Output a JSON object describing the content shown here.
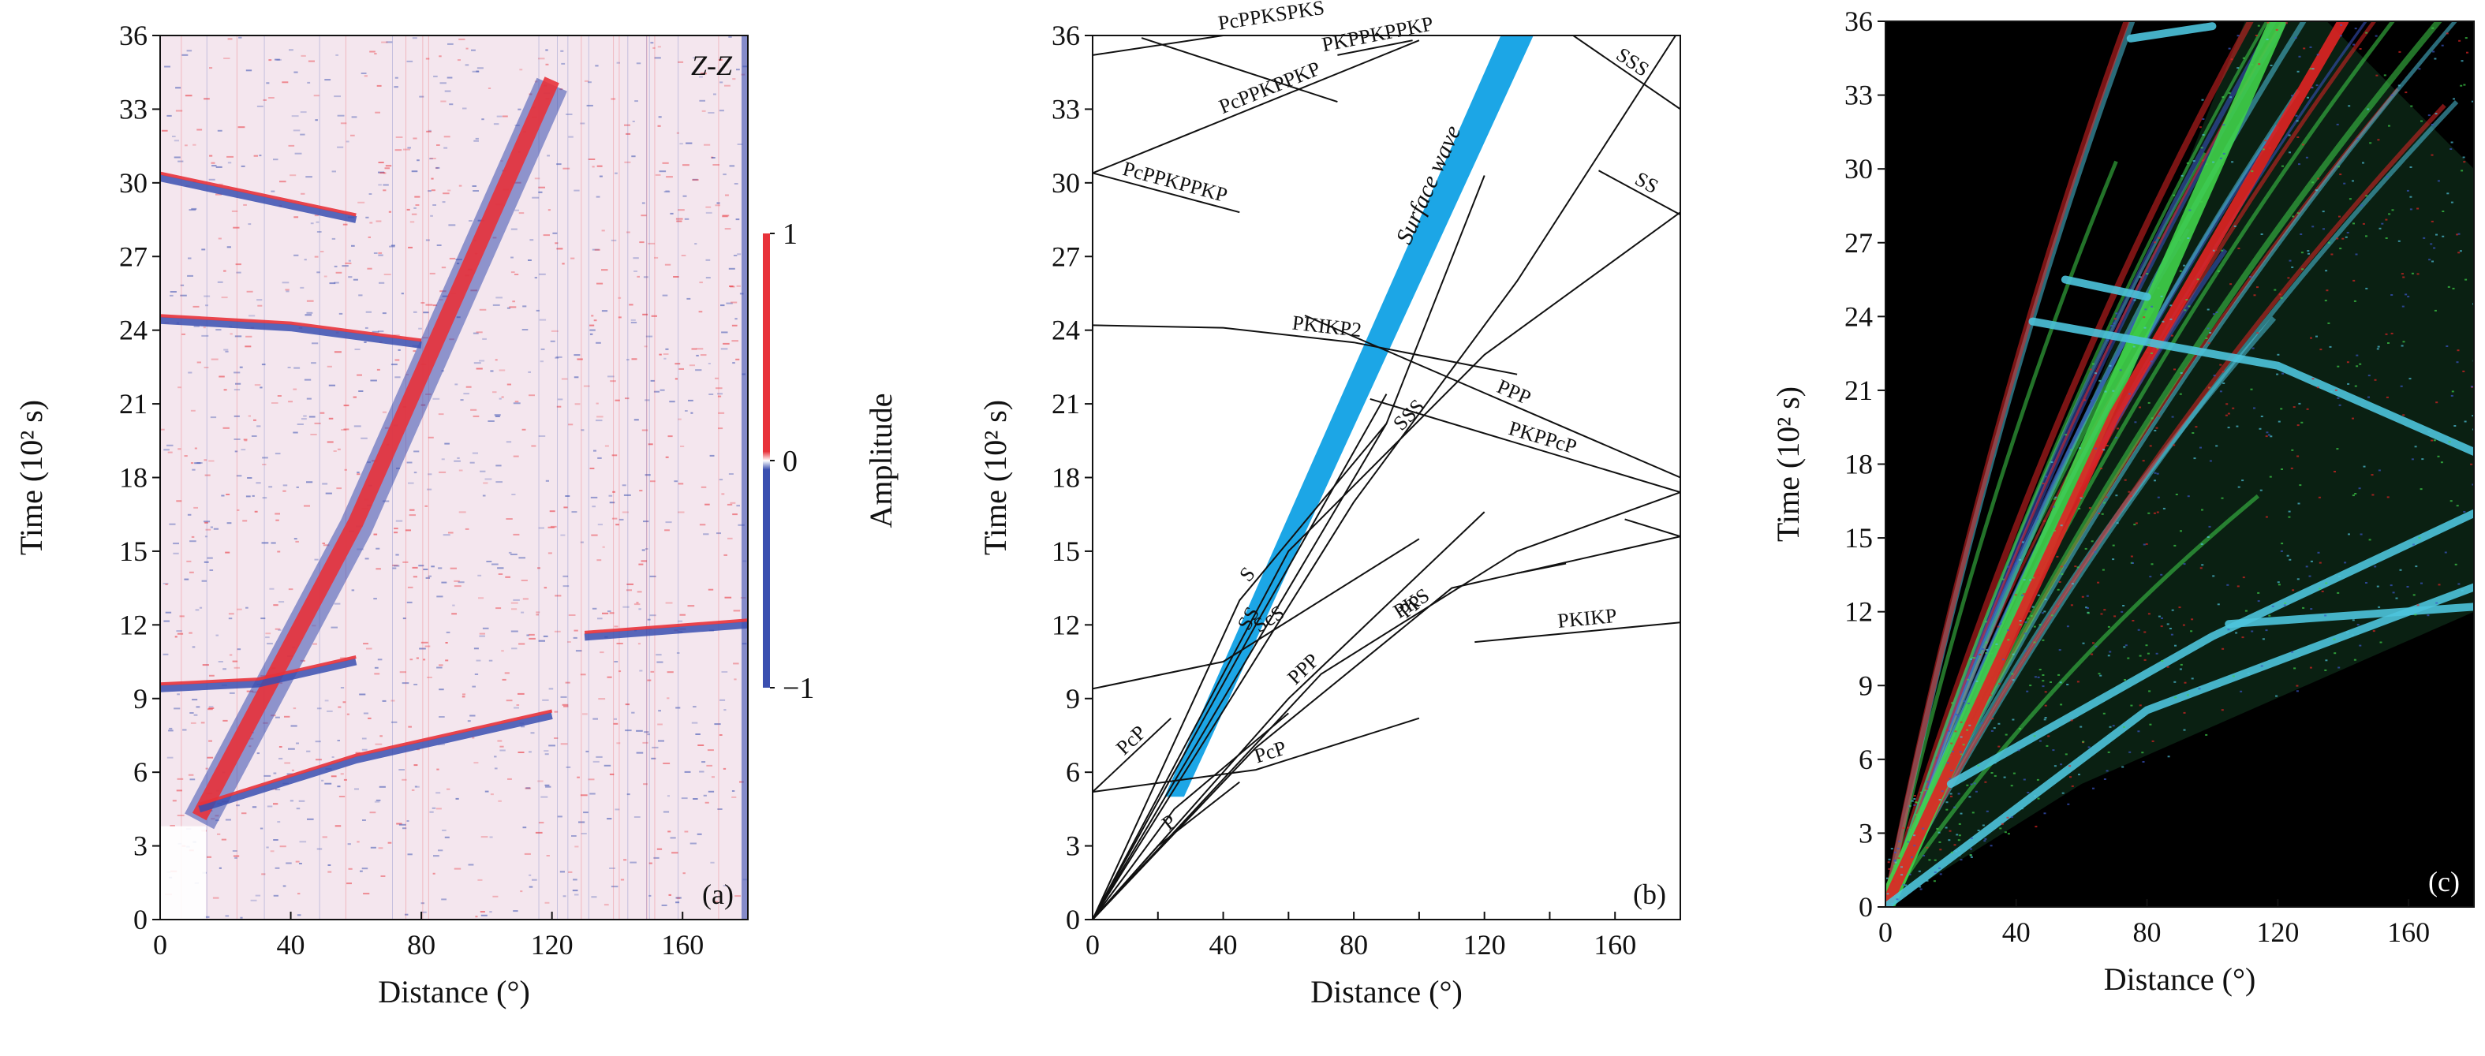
{
  "chart_data": [
    {
      "type": "heatmap",
      "panel_label": "(a)",
      "corner_label": "Z-Z",
      "xlabel": "Distance (°)",
      "ylabel": "Time (10² s)",
      "xlim": [
        0,
        180
      ],
      "ylim": [
        0,
        36
      ],
      "xticks": [
        0,
        40,
        80,
        120,
        160
      ],
      "yticks": [
        0,
        3,
        6,
        9,
        12,
        15,
        18,
        21,
        24,
        27,
        30,
        33,
        36
      ],
      "colorbar": {
        "title": "Amplitude",
        "ticks": [
          {
            "value": 1,
            "label": "1"
          },
          {
            "value": 0,
            "label": "0"
          },
          {
            "value": -1,
            "label": "−1"
          }
        ],
        "colors": {
          "positive": "#e8323a",
          "zero": "#ffffff",
          "negative": "#3a4fb0"
        }
      },
      "background_color": "#f4e6ee",
      "features": [
        {
          "name": "surface wave band",
          "points": [
            [
              12,
              4
            ],
            [
              60,
              16
            ],
            [
              90,
              25
            ],
            [
              120,
              34
            ]
          ]
        },
        {
          "name": "ScS",
          "points": [
            [
              0,
              9.4
            ],
            [
              30,
              9.6
            ],
            [
              60,
              10.5
            ]
          ]
        },
        {
          "name": "PKIKP2",
          "points": [
            [
              0,
              24.4
            ],
            [
              40,
              24.1
            ],
            [
              80,
              23.4
            ]
          ]
        },
        {
          "name": "PcPPKPPKP",
          "points": [
            [
              0,
              30.2
            ],
            [
              60,
              28.5
            ]
          ]
        },
        {
          "name": "P",
          "points": [
            [
              12,
              4.5
            ],
            [
              60,
              6.5
            ],
            [
              120,
              8.3
            ]
          ]
        },
        {
          "name": "PKIKP",
          "points": [
            [
              130,
              11.5
            ],
            [
              180,
              12.0
            ]
          ]
        }
      ]
    },
    {
      "type": "line",
      "panel_label": "(b)",
      "xlabel": "Distance (°)",
      "ylabel": "Time (10² s)",
      "xlim": [
        0,
        180
      ],
      "ylim": [
        0,
        36
      ],
      "xticks": [
        0,
        20,
        40,
        60,
        80,
        100,
        120,
        140,
        160
      ],
      "xtick_labels": [
        "0",
        "",
        "40",
        "",
        "80",
        "",
        "120",
        "",
        "160"
      ],
      "yticks": [
        0,
        3,
        6,
        9,
        12,
        15,
        18,
        21,
        24,
        27,
        30,
        33,
        36
      ],
      "surface_wave": {
        "label": "Surface wave",
        "color": "#1ca6e6",
        "left_edge": [
          [
            22,
            5
          ],
          [
            125,
            36
          ]
        ],
        "right_edge": [
          [
            28,
            5
          ],
          [
            135,
            36
          ]
        ]
      },
      "labels": [
        "PcPPKSPKS",
        "PKPPKPPKP",
        "PcPPKPPKP",
        "PcPPKPPKP",
        "SSS",
        "SS",
        "SSS",
        "PKIKP2",
        "PPP",
        "PKPPcP",
        "SS",
        "PKS",
        "PKIKP",
        "PPP",
        "PP",
        "PcP",
        "ScS",
        "S",
        "PcP",
        "P"
      ],
      "series": [
        {
          "label_index": 0,
          "points": [
            [
              0,
              35.2
            ],
            [
              50,
              36.2
            ],
            [
              100,
              37.2
            ]
          ]
        },
        {
          "label_index": 0,
          "points": [
            [
              15,
              35.9
            ],
            [
              75,
              33.3
            ]
          ]
        },
        {
          "label_index": 1,
          "points": [
            [
              75,
              35.2
            ],
            [
              98,
              35.8
            ]
          ]
        },
        {
          "label_index": 2,
          "points": [
            [
              0,
              30.4
            ],
            [
              100,
              35.8
            ]
          ]
        },
        {
          "label_index": 3,
          "points": [
            [
              0,
              30.4
            ],
            [
              45,
              28.8
            ]
          ]
        },
        {
          "label_index": 4,
          "points": [
            [
              145,
              36.2
            ],
            [
              180,
              33.0
            ]
          ]
        },
        {
          "label_index": 5,
          "points": [
            [
              155,
              30.5
            ],
            [
              180,
              28.7
            ]
          ]
        },
        {
          "label_index": 6,
          "points": [
            [
              0,
              0
            ],
            [
              60,
              15
            ],
            [
              120,
              23
            ],
            [
              180,
              28.8
            ]
          ]
        },
        {
          "label_index": 6,
          "points": [
            [
              0,
              0
            ],
            [
              80,
              17
            ],
            [
              130,
              26
            ],
            [
              180,
              36.3
            ]
          ]
        },
        {
          "label_index": 7,
          "points": [
            [
              0,
              24.2
            ],
            [
              40,
              24.1
            ],
            [
              80,
              23.5
            ],
            [
              130,
              22.2
            ]
          ]
        },
        {
          "label_index": 8,
          "points": [
            [
              65,
              24.6
            ],
            [
              180,
              18.0
            ]
          ]
        },
        {
          "label_index": 9,
          "points": [
            [
              85,
              21.2
            ],
            [
              180,
              17.4
            ]
          ]
        },
        {
          "label_index": 10,
          "points": [
            [
              0,
              0
            ],
            [
              50,
              12
            ],
            [
              90,
              21.4
            ]
          ]
        },
        {
          "label_index": 10,
          "points": [
            [
              0,
              0
            ],
            [
              90,
              20.2
            ],
            [
              120,
              30.3
            ]
          ]
        },
        {
          "label_index": 11,
          "points": [
            [
              0,
              0
            ],
            [
              70,
              10
            ],
            [
              130,
              15
            ],
            [
              180,
              17.4
            ]
          ]
        },
        {
          "label_index": 11,
          "points": [
            [
              130,
              14.1
            ],
            [
              145,
              14.5
            ]
          ]
        },
        {
          "label_index": 12,
          "points": [
            [
              117,
              11.3
            ],
            [
              180,
              12.1
            ]
          ]
        },
        {
          "label_index": 12,
          "points": [
            [
              163,
              16.3
            ],
            [
              180,
              15.6
            ]
          ]
        },
        {
          "label_index": 13,
          "points": [
            [
              0,
              0
            ],
            [
              60,
              9
            ],
            [
              120,
              16.6
            ]
          ]
        },
        {
          "label_index": 14,
          "points": [
            [
              0,
              0
            ],
            [
              50,
              7
            ],
            [
              110,
              13.5
            ],
            [
              180,
              15.6
            ]
          ]
        },
        {
          "label_index": 15,
          "points": [
            [
              0,
              5.2
            ],
            [
              50,
              6.1
            ],
            [
              100,
              8.2
            ]
          ]
        },
        {
          "label_index": 16,
          "points": [
            [
              0,
              9.4
            ],
            [
              40,
              10.5
            ],
            [
              100,
              15.5
            ]
          ]
        },
        {
          "label_index": 17,
          "points": [
            [
              0,
              0
            ],
            [
              45,
              13
            ],
            [
              90,
              20.2
            ]
          ]
        },
        {
          "label_index": 18,
          "points": [
            [
              0,
              5.2
            ],
            [
              24,
              8.2
            ]
          ]
        },
        {
          "label_index": 19,
          "points": [
            [
              0,
              0
            ],
            [
              20,
              3
            ],
            [
              45,
              5.6
            ]
          ]
        },
        {
          "label_index": 19,
          "points": [
            [
              0,
              0
            ],
            [
              25,
              4.5
            ],
            [
              60,
              8.4
            ]
          ]
        }
      ]
    },
    {
      "type": "heatmap",
      "panel_label": "(c)",
      "xlabel": "Distance (°)",
      "ylabel": "Time (10² s)",
      "xlim": [
        0,
        180
      ],
      "ylim": [
        0,
        36
      ],
      "xticks": [
        0,
        40,
        80,
        120,
        160
      ],
      "yticks": [
        0,
        3,
        6,
        9,
        12,
        15,
        18,
        21,
        24,
        27,
        30,
        33,
        36
      ],
      "background_color": "#000000",
      "colors": {
        "green": "#3fd14a",
        "red": "#e02424",
        "cyan": "#4dc3dc",
        "blue": "#3a55c8"
      },
      "features": [
        {
          "color": "green",
          "points": [
            [
              0,
              0
            ],
            [
              60,
              18
            ],
            [
              120,
              36
            ]
          ]
        },
        {
          "color": "red",
          "points": [
            [
              0,
              0
            ],
            [
              70,
              20
            ],
            [
              140,
              36
            ]
          ]
        },
        {
          "color": "cyan",
          "points": [
            [
              0,
              0
            ],
            [
              80,
              8
            ],
            [
              180,
              13
            ]
          ]
        },
        {
          "color": "cyan",
          "points": [
            [
              20,
              5
            ],
            [
              100,
              11
            ],
            [
              180,
              16
            ]
          ]
        },
        {
          "color": "cyan",
          "points": [
            [
              45,
              23.8
            ],
            [
              120,
              22
            ],
            [
              180,
              18.5
            ]
          ]
        },
        {
          "color": "cyan",
          "points": [
            [
              105,
              11.5
            ],
            [
              180,
              12.2
            ]
          ]
        },
        {
          "color": "cyan",
          "points": [
            [
              75,
              35.3
            ],
            [
              100,
              35.8
            ]
          ]
        },
        {
          "color": "cyan",
          "points": [
            [
              55,
              25.5
            ],
            [
              80,
              24.8
            ]
          ]
        }
      ]
    }
  ]
}
